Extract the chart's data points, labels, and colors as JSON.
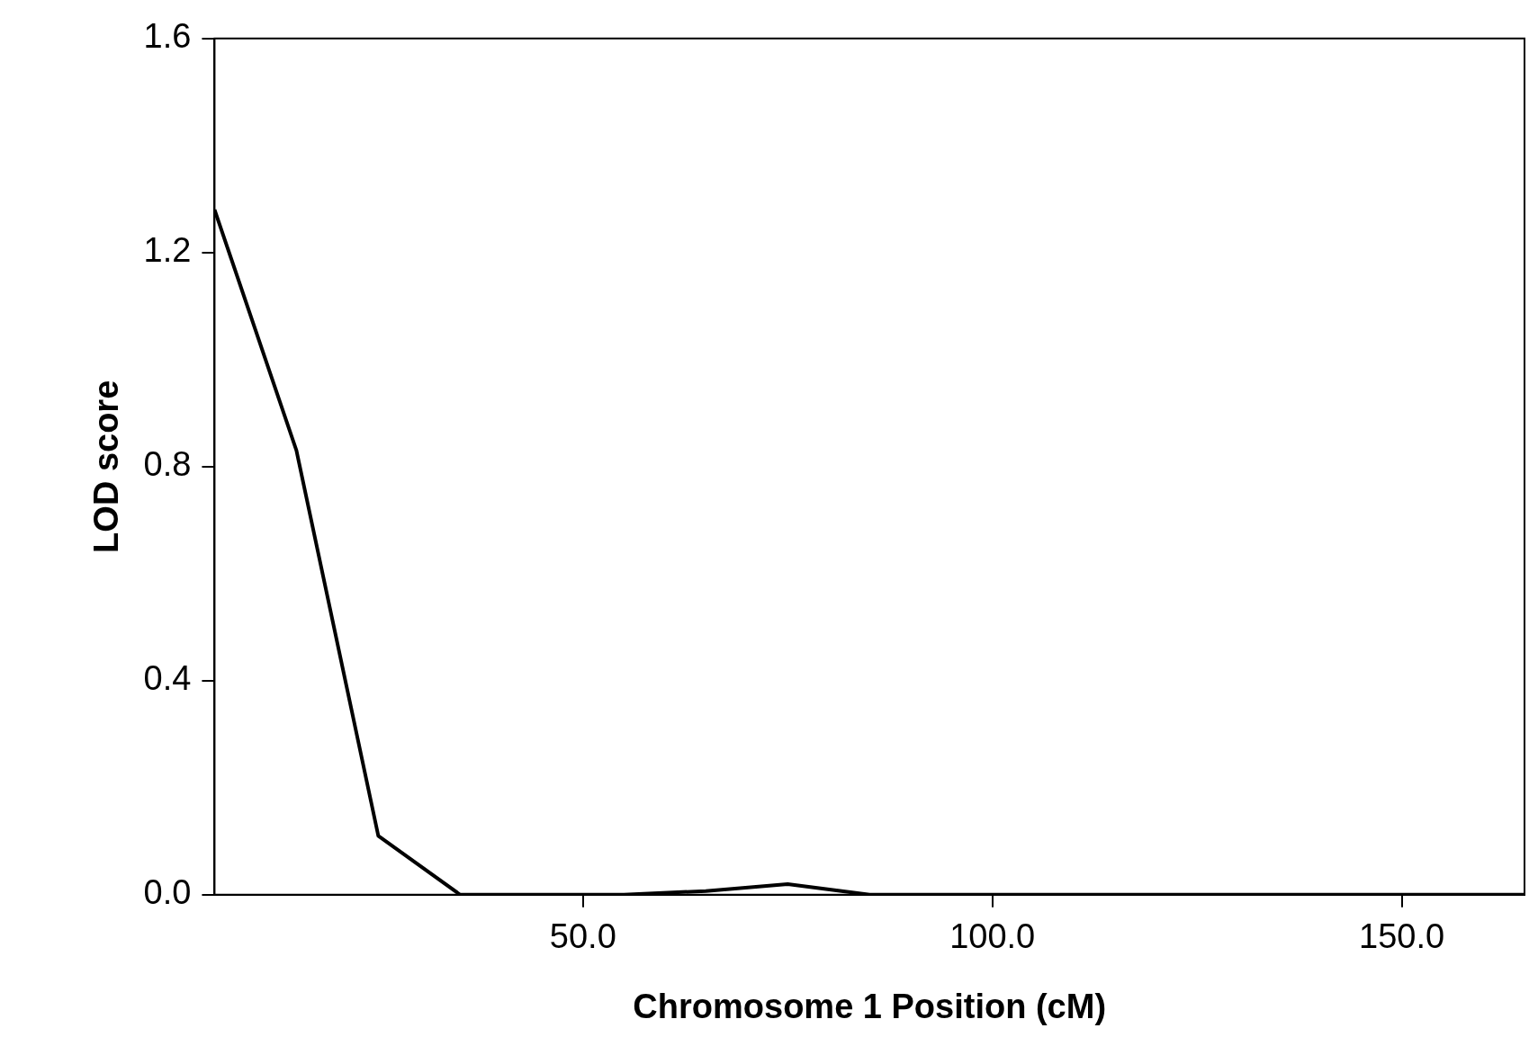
{
  "chart_data": {
    "type": "line",
    "xlabel": "Chromosome 1 Position (cM)",
    "ylabel": "LOD score",
    "x": [
      5,
      15,
      25,
      35,
      45,
      55,
      65,
      75,
      85,
      95,
      105,
      115,
      125,
      135,
      145,
      155,
      165
    ],
    "series": [
      {
        "color": "#000000",
        "values": [
          1.28,
          0.83,
          0.11,
          0,
          0,
          0,
          0.007,
          0.02,
          0,
          0,
          0,
          0,
          0,
          0,
          0,
          0,
          0
        ]
      }
    ],
    "xlim": [
      5,
      165
    ],
    "xticks": [
      {
        "value": 50,
        "label": "50.0"
      },
      {
        "value": 100,
        "label": "100.0"
      },
      {
        "value": 150,
        "label": "150.0"
      }
    ],
    "ylim": [
      0,
      1.6
    ],
    "yticks": [
      {
        "value": 0,
        "label": "0.0"
      },
      {
        "value": 0.4,
        "label": "0.4"
      },
      {
        "value": 0.8,
        "label": "0.8"
      },
      {
        "value": 1.2,
        "label": "1.2"
      },
      {
        "value": 1.6,
        "label": "1.6"
      }
    ],
    "grid": false,
    "legend": false,
    "marker": "none",
    "line_style": "solid"
  }
}
